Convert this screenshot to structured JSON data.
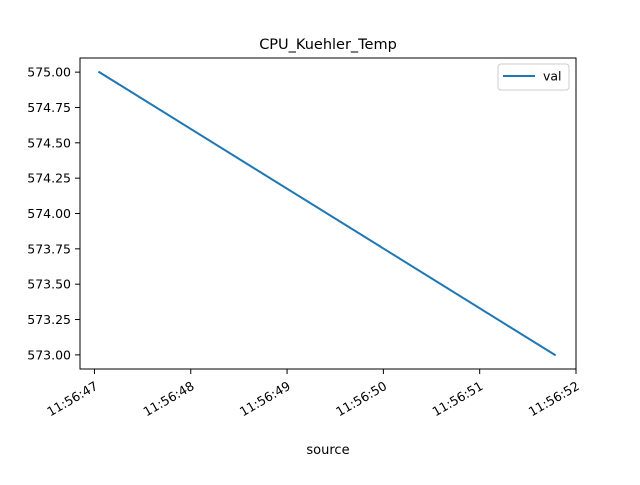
{
  "chart_data": {
    "type": "line",
    "title": "CPU_Kuehler_Temp",
    "xlabel": "source",
    "ylabel": "",
    "x_tick_labels": [
      "11:56:47",
      "11:56:48",
      "11:56:49",
      "11:56:50",
      "11:56:51",
      "11:56:52"
    ],
    "x_tick_values": [
      "11:56:47",
      "11:56:48",
      "11:56:49",
      "11:56:50",
      "11:56:51",
      "11:56:52"
    ],
    "y_tick_labels": [
      "573.00",
      "573.25",
      "573.50",
      "573.75",
      "574.00",
      "574.25",
      "574.50",
      "574.75",
      "575.00"
    ],
    "xlim": [
      "11:56:46.85",
      "11:56:52.0"
    ],
    "ylim": [
      572.9,
      575.1
    ],
    "grid": false,
    "legend": {
      "position": "top-right",
      "entries": [
        "val"
      ]
    },
    "series": [
      {
        "name": "val",
        "color": "#1f77b4",
        "x": [
          "11:56:47.05",
          "11:56:51.78"
        ],
        "y": [
          575.0,
          573.0
        ]
      }
    ]
  }
}
